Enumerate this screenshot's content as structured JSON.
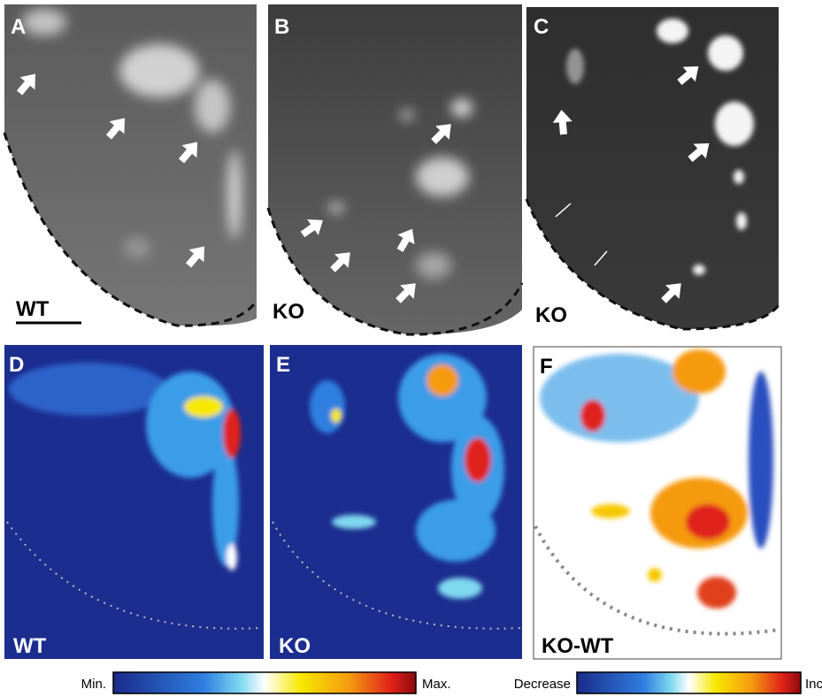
{
  "panels": [
    {
      "letter": "A",
      "label": "WT"
    },
    {
      "letter": "B",
      "label": "KO"
    },
    {
      "letter": "C",
      "label": "KO"
    },
    {
      "letter": "D",
      "label": "WT"
    },
    {
      "letter": "E",
      "label": "KO"
    },
    {
      "letter": "F",
      "label": "KO-WT"
    }
  ],
  "colorbars": [
    {
      "low_label": "Min.",
      "high_label": "Max."
    },
    {
      "low_label": "Decrease",
      "high_label": "Increase"
    }
  ]
}
